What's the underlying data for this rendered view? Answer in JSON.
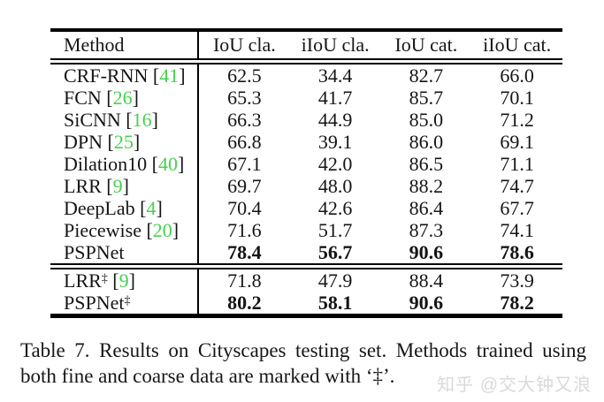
{
  "colors": {
    "citation_green": "#45d14f",
    "watermark_gray": "#d9d9d9",
    "text": "#151515",
    "rule": "#000000"
  },
  "table": {
    "dagger_symbol": "‡",
    "columns": [
      "Method",
      "IoU cla.",
      "iIoU cla.",
      "IoU cat.",
      "iIoU cat."
    ],
    "sections": [
      {
        "rows": [
          {
            "method": "CRF-RNN",
            "dagger": false,
            "cite": "41",
            "bold": false,
            "values": [
              "62.5",
              "34.4",
              "82.7",
              "66.0"
            ]
          },
          {
            "method": "FCN",
            "dagger": false,
            "cite": "26",
            "bold": false,
            "values": [
              "65.3",
              "41.7",
              "85.7",
              "70.1"
            ]
          },
          {
            "method": "SiCNN",
            "dagger": false,
            "cite": "16",
            "bold": false,
            "values": [
              "66.3",
              "44.9",
              "85.0",
              "71.2"
            ]
          },
          {
            "method": "DPN",
            "dagger": false,
            "cite": "25",
            "bold": false,
            "values": [
              "66.8",
              "39.1",
              "86.0",
              "69.1"
            ]
          },
          {
            "method": "Dilation10",
            "dagger": false,
            "cite": "40",
            "bold": false,
            "values": [
              "67.1",
              "42.0",
              "86.5",
              "71.1"
            ]
          },
          {
            "method": "LRR",
            "dagger": false,
            "cite": "9",
            "bold": false,
            "values": [
              "69.7",
              "48.0",
              "88.2",
              "74.7"
            ]
          },
          {
            "method": "DeepLab",
            "dagger": false,
            "cite": "4",
            "bold": false,
            "values": [
              "70.4",
              "42.6",
              "86.4",
              "67.7"
            ]
          },
          {
            "method": "Piecewise",
            "dagger": false,
            "cite": "20",
            "bold": false,
            "values": [
              "71.6",
              "51.7",
              "87.3",
              "74.1"
            ]
          },
          {
            "method": "PSPNet",
            "dagger": false,
            "cite": null,
            "bold": true,
            "values": [
              "78.4",
              "56.7",
              "90.6",
              "78.6"
            ]
          }
        ]
      },
      {
        "rows": [
          {
            "method": "LRR",
            "dagger": true,
            "cite": "9",
            "bold": false,
            "values": [
              "71.8",
              "47.9",
              "88.4",
              "73.9"
            ]
          },
          {
            "method": "PSPNet",
            "dagger": true,
            "cite": null,
            "bold": true,
            "values": [
              "80.2",
              "58.1",
              "90.6",
              "78.2"
            ]
          }
        ]
      }
    ]
  },
  "caption": {
    "line1": "Table 7. Results on Cityscapes testing set.  Methods trained using",
    "line2": "both fine and coarse data are marked with ‘‡’."
  },
  "watermark": "知乎 @交大钟又浪"
}
